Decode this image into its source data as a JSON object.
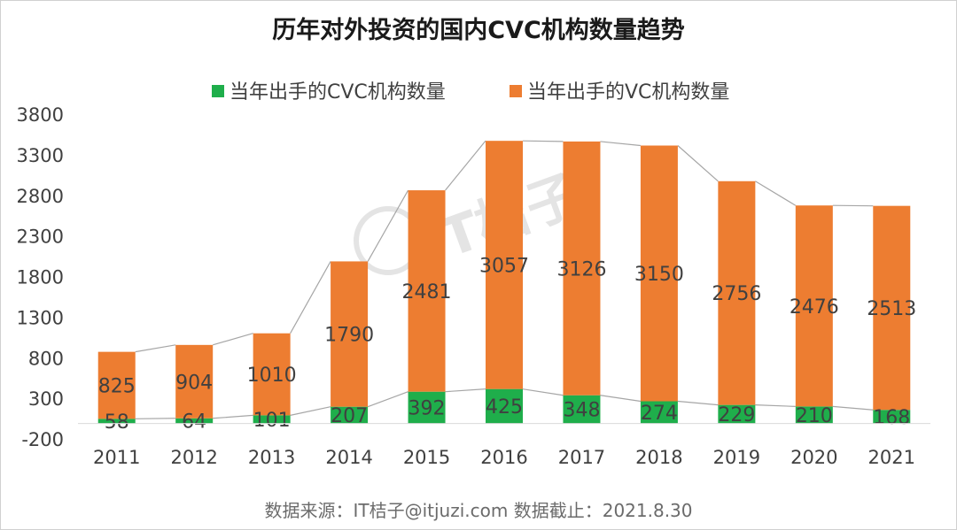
{
  "chart_data": {
    "type": "bar",
    "stacked": true,
    "title": "历年对外投资的国内CVC机构数量趋势",
    "categories": [
      "2011",
      "2012",
      "2013",
      "2014",
      "2015",
      "2016",
      "2017",
      "2018",
      "2019",
      "2020",
      "2021"
    ],
    "series": [
      {
        "name": "当年出手的CVC机构数量",
        "color": "#1fae4b",
        "values": [
          58,
          64,
          101,
          207,
          392,
          425,
          348,
          274,
          229,
          210,
          168
        ]
      },
      {
        "name": "当年出手的VC机构数量",
        "color": "#ed7d31",
        "values": [
          825,
          904,
          1010,
          1790,
          2481,
          3057,
          3126,
          3150,
          2756,
          2476,
          2513
        ]
      }
    ],
    "ylim": [
      -200,
      3800
    ],
    "yticks": [
      "3800",
      "3300",
      "2800",
      "2300",
      "1800",
      "1300",
      "800",
      "300",
      "-200"
    ],
    "grid": false,
    "legend_position": "top",
    "connector_lines": true,
    "source_note": "数据来源：IT桔子@itjuzi.com  数据截止：2021.8.30",
    "watermark": "IT桔子"
  }
}
